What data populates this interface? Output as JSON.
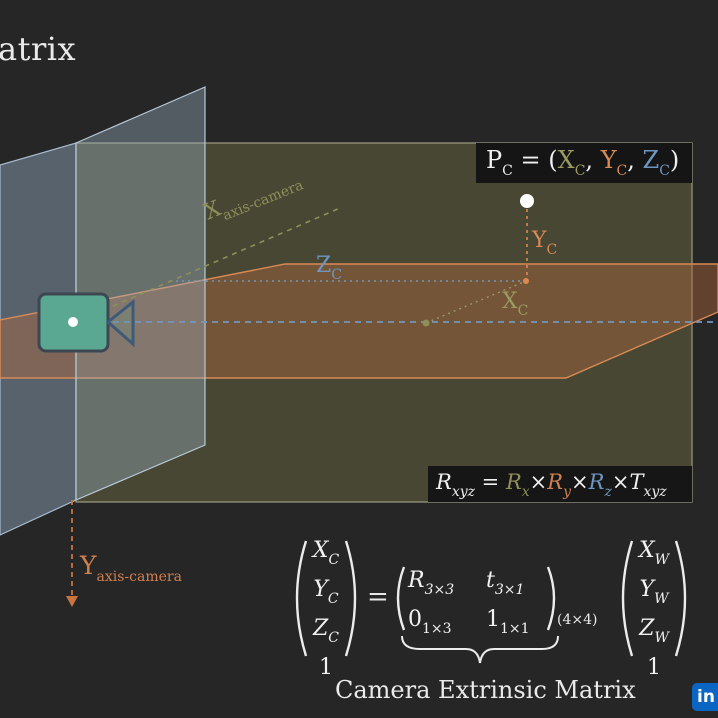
{
  "title": "atrix",
  "point_label": {
    "prefix": "P",
    "prefix_sub": "C",
    "open": " = (",
    "x": "X",
    "x_sub": "C",
    "sep1": ", ",
    "y": "Y",
    "y_sub": "C",
    "sep2": ", ",
    "z": "Z",
    "z_sub": "C",
    "close": ")"
  },
  "axis_labels": {
    "x_axis_camera": {
      "main": "X",
      "sub": "axis-camera"
    },
    "y_axis_camera": {
      "main": "Y",
      "sub": "axis-camera"
    },
    "y_c": {
      "main": "Y",
      "sub": "C"
    },
    "z_c": {
      "main": "Z",
      "sub": "C"
    },
    "x_c": {
      "main": "X",
      "sub": "C"
    }
  },
  "rotation_formula": {
    "lhs": "R",
    "lhs_sub": "xyz",
    "eq": " = ",
    "rx": "R",
    "rx_sub": "x",
    "times1": "×",
    "ry": "R",
    "ry_sub": "y",
    "times2": "×",
    "rz": "R",
    "rz_sub": "z",
    "times3": "×",
    "t": "T",
    "t_sub": "xyz"
  },
  "equation": {
    "camera_vector": [
      {
        "v": "X",
        "s": "C"
      },
      {
        "v": "Y",
        "s": "C"
      },
      {
        "v": "Z",
        "s": "C"
      },
      {
        "v": "1",
        "s": ""
      }
    ],
    "equals": "=",
    "matrix": [
      [
        {
          "v": "R",
          "s": "3×3"
        },
        {
          "v": "t",
          "s": "3×1"
        }
      ],
      [
        {
          "v": "0",
          "s": "1×3"
        },
        {
          "v": "1",
          "s": "1×1"
        }
      ]
    ],
    "matrix_size": "(4×4)",
    "world_vector": [
      {
        "v": "X",
        "s": "W"
      },
      {
        "v": "Y",
        "s": "W"
      },
      {
        "v": "Z",
        "s": "W"
      },
      {
        "v": "1",
        "s": ""
      }
    ]
  },
  "caption": "Camera Extrinsic Matrix",
  "badge": "in",
  "colors": {
    "background": "#262626",
    "x_axis": "#8f8f5a",
    "y_axis": "#d08050",
    "z_axis": "#6f96c0",
    "image_plane": "#8ea6bd",
    "camera": "#58a891"
  }
}
